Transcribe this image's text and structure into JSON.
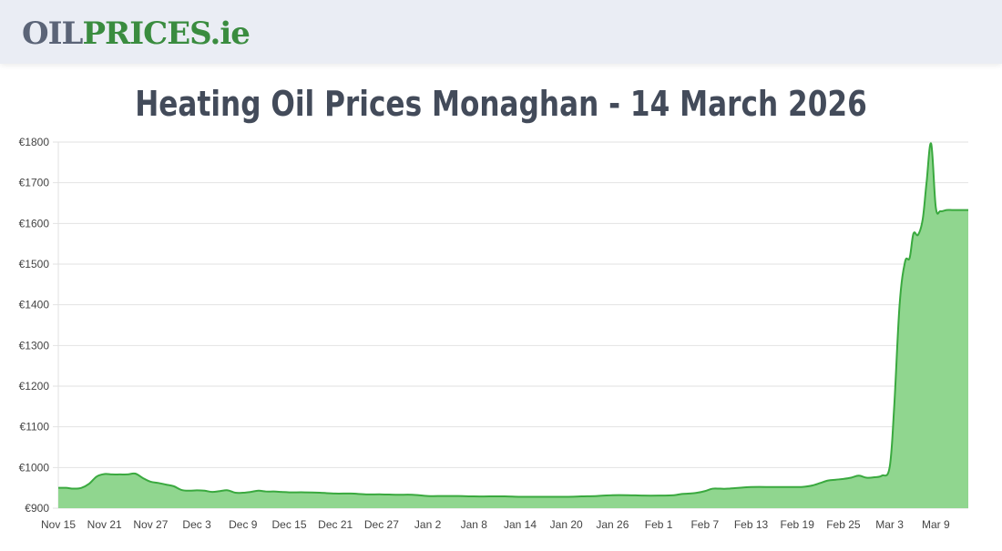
{
  "header": {
    "logo_part1": "OIL",
    "logo_part2": "PRICES.ie",
    "logo_colors": {
      "oil": "#5b6477",
      "prices": "#3a8c3f"
    }
  },
  "page": {
    "title": "Heating Oil Prices Monaghan - 14 March 2026"
  },
  "chart_data": {
    "type": "area",
    "title": "Heating Oil Prices Monaghan - 14 March 2026",
    "xlabel": "",
    "ylabel": "",
    "currency": "€",
    "ylim": [
      900,
      1800
    ],
    "yticks": [
      900,
      1000,
      1100,
      1200,
      1300,
      1400,
      1500,
      1600,
      1700,
      1800
    ],
    "ytick_labels": [
      "€900",
      "€1000",
      "€1100",
      "€1200",
      "€1300",
      "€1400",
      "€1500",
      "€1600",
      "€1700",
      "€1800"
    ],
    "xtick_labels": [
      "Nov 15",
      "Nov 21",
      "Nov 27",
      "Dec 3",
      "Dec 9",
      "Dec 15",
      "Dec 21",
      "Dec 27",
      "Jan 2",
      "Jan 8",
      "Jan 14",
      "Jan 20",
      "Jan 26",
      "Feb 1",
      "Feb 7",
      "Feb 13",
      "Feb 19",
      "Feb 25",
      "Mar 3",
      "Mar 9"
    ],
    "xtick_day_index": [
      0,
      6,
      12,
      18,
      24,
      30,
      36,
      42,
      48,
      54,
      60,
      66,
      72,
      78,
      84,
      90,
      96,
      102,
      108,
      114
    ],
    "grid": true,
    "legend": null,
    "line_color": "#3aa93f",
    "fill_color": "#90d68f",
    "series": [
      {
        "name": "Heating Oil Price",
        "x_day_index": [
          0,
          1,
          2,
          3,
          4,
          5,
          6,
          7,
          8,
          9,
          10,
          11,
          12,
          13,
          14,
          15,
          16,
          17,
          18,
          19,
          20,
          21,
          22,
          23,
          24,
          25,
          26,
          27,
          28,
          29,
          30,
          32,
          34,
          36,
          38,
          40,
          42,
          44,
          46,
          48,
          50,
          52,
          54,
          56,
          58,
          60,
          62,
          64,
          66,
          68,
          70,
          72,
          74,
          76,
          78,
          80,
          81,
          82,
          83,
          84,
          85,
          86,
          87,
          90,
          93,
          96,
          97,
          98,
          99,
          100,
          101,
          102,
          103,
          104,
          105,
          106,
          107,
          108,
          108.6,
          109.3,
          110,
          110.6,
          111.1,
          111.7,
          112.3,
          112.8,
          113.4,
          114,
          114.6,
          115.4,
          116.1,
          116.8,
          117.5,
          118
        ],
        "values": [
          950,
          950,
          948,
          950,
          960,
          978,
          984,
          983,
          983,
          983,
          985,
          974,
          965,
          962,
          958,
          954,
          945,
          943,
          944,
          943,
          940,
          942,
          944,
          938,
          938,
          940,
          943,
          941,
          941,
          940,
          939,
          939,
          938,
          936,
          936,
          934,
          934,
          933,
          933,
          930,
          930,
          930,
          929,
          929,
          929,
          928,
          928,
          928,
          928,
          929,
          930,
          932,
          932,
          931,
          931,
          932,
          935,
          936,
          938,
          942,
          948,
          948,
          948,
          952,
          952,
          952,
          953,
          956,
          962,
          968,
          970,
          972,
          975,
          980,
          975,
          976,
          980,
          1000,
          1150,
          1400,
          1505,
          1515,
          1575,
          1572,
          1610,
          1700,
          1796,
          1640,
          1630,
          1633,
          1633,
          1633,
          1633,
          1633
        ]
      }
    ]
  }
}
